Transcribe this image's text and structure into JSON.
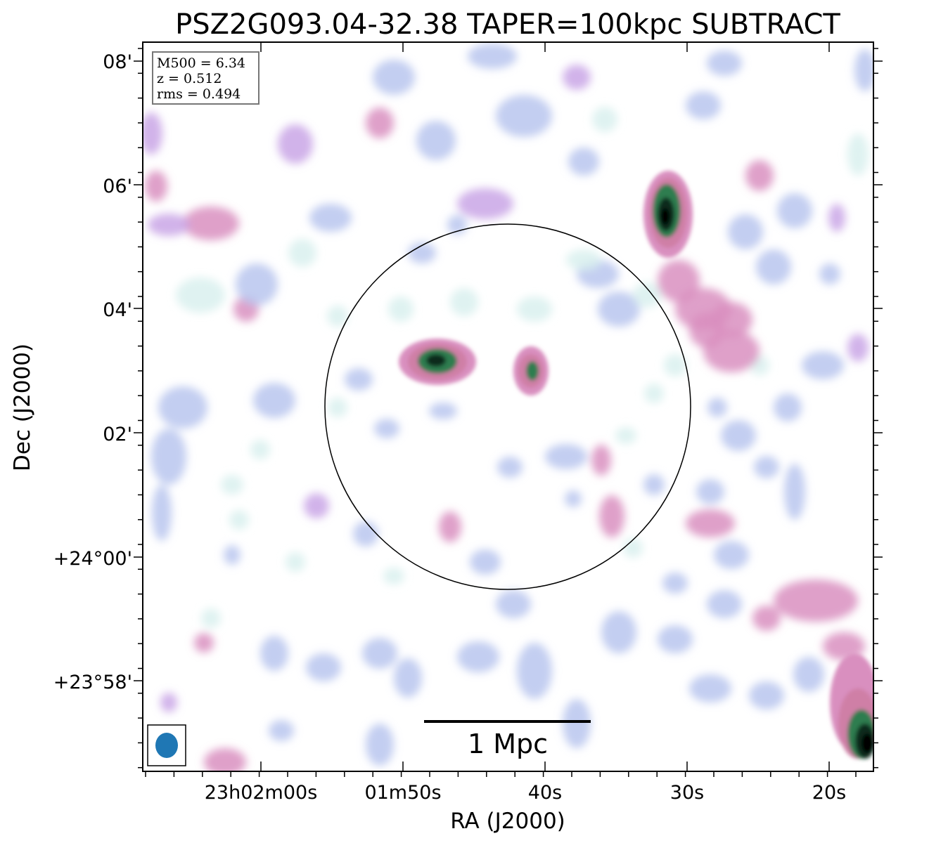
{
  "title": "PSZ2G093.04-32.38 TAPER=100kpc SUBTRACT",
  "info_box": {
    "m500": "M500 = 6.34",
    "redshift": "z = 0.512",
    "rms": "rms = 0.494"
  },
  "x_axis": {
    "label": "RA (J2000)",
    "ticks": [
      "23h02m00s",
      "01m50s",
      "40s",
      "30s",
      "20s"
    ]
  },
  "y_axis": {
    "label": "Dec (J2000)",
    "ticks": [
      "08'",
      "06'",
      "04'",
      "02'",
      "+24°00'",
      "+23°58'"
    ]
  },
  "scale_bar": {
    "label": "1 Mpc"
  },
  "colors": {
    "colormap": [
      "#d9f0ee",
      "#b8c6ee",
      "#c9a6e6",
      "#d98fbf",
      "#cf7fa6",
      "#2e7d4f",
      "#0a2a1a",
      "#000000"
    ],
    "circle": "#000000",
    "beam": "#1f77b4"
  }
}
